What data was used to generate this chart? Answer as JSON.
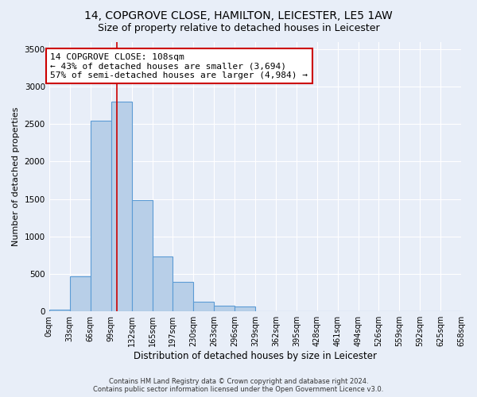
{
  "title": "14, COPGROVE CLOSE, HAMILTON, LEICESTER, LE5 1AW",
  "subtitle": "Size of property relative to detached houses in Leicester",
  "xlabel": "Distribution of detached houses by size in Leicester",
  "ylabel": "Number of detached properties",
  "bin_edges": [
    0,
    33,
    66,
    99,
    132,
    165,
    197,
    230,
    263,
    296,
    329,
    362,
    395,
    428,
    461,
    494,
    526,
    559,
    592,
    625,
    658
  ],
  "counts": [
    20,
    470,
    2550,
    2800,
    1490,
    730,
    390,
    130,
    80,
    70,
    0,
    0,
    0,
    0,
    0,
    0,
    0,
    0,
    0,
    0
  ],
  "bar_facecolor": "#b8cfe8",
  "bar_edgecolor": "#5b9bd5",
  "vline_x": 108,
  "vline_color": "#cc0000",
  "annotation_text": "14 COPGROVE CLOSE: 108sqm\n← 43% of detached houses are smaller (3,694)\n57% of semi-detached houses are larger (4,984) →",
  "annotation_box_facecolor": "#ffffff",
  "annotation_box_edgecolor": "#cc0000",
  "ylim": [
    0,
    3600
  ],
  "yticks": [
    0,
    500,
    1000,
    1500,
    2000,
    2500,
    3000,
    3500
  ],
  "footer_line1": "Contains HM Land Registry data © Crown copyright and database right 2024.",
  "footer_line2": "Contains public sector information licensed under the Open Government Licence v3.0.",
  "bg_color": "#e8eef8",
  "plot_bg_color": "#e8eef8",
  "title_fontsize": 10,
  "subtitle_fontsize": 9,
  "ylabel_fontsize": 8,
  "xlabel_fontsize": 8.5,
  "tick_label_fontsize": 7,
  "annotation_fontsize": 8,
  "footer_fontsize": 6
}
